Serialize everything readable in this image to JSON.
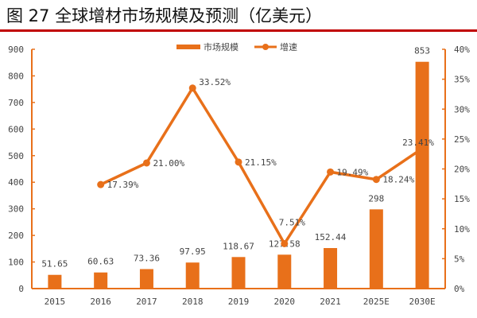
{
  "title": "图 27 全球增材市场规模及预测（亿美元）",
  "colors": {
    "accent": "#E8701A",
    "rule": "#C00000"
  },
  "chart_data": {
    "type": "bar+line",
    "categories": [
      "2015",
      "2016",
      "2017",
      "2018",
      "2019",
      "2020",
      "2021",
      "2025E",
      "2030E"
    ],
    "series": [
      {
        "name": "市场规模",
        "type": "bar",
        "axis": "left",
        "values": [
          51.65,
          60.63,
          73.36,
          97.95,
          118.67,
          127.58,
          152.44,
          298,
          853
        ],
        "labels": [
          "51.65",
          "60.63",
          "73.36",
          "97.95",
          "118.67",
          "127.58",
          "152.44",
          "298",
          "853"
        ]
      },
      {
        "name": "增速",
        "type": "line",
        "axis": "right",
        "values": [
          null,
          17.39,
          21.0,
          33.52,
          21.15,
          7.51,
          19.49,
          18.24,
          23.41
        ],
        "labels": [
          "",
          "17.39%",
          "21.00%",
          "33.52%",
          "21.15%",
          "7.51%",
          "19.49%",
          "18.24%",
          "23.41%"
        ]
      }
    ],
    "ylim": [
      0,
      900
    ],
    "yticks": [
      "0",
      "100",
      "200",
      "300",
      "400",
      "500",
      "600",
      "700",
      "800",
      "900"
    ],
    "y2lim": [
      0,
      40
    ],
    "y2ticks": [
      "0%",
      "5%",
      "10%",
      "15%",
      "20%",
      "25%",
      "30%",
      "35%",
      "40%"
    ],
    "legend": "top-center",
    "grid": false
  }
}
